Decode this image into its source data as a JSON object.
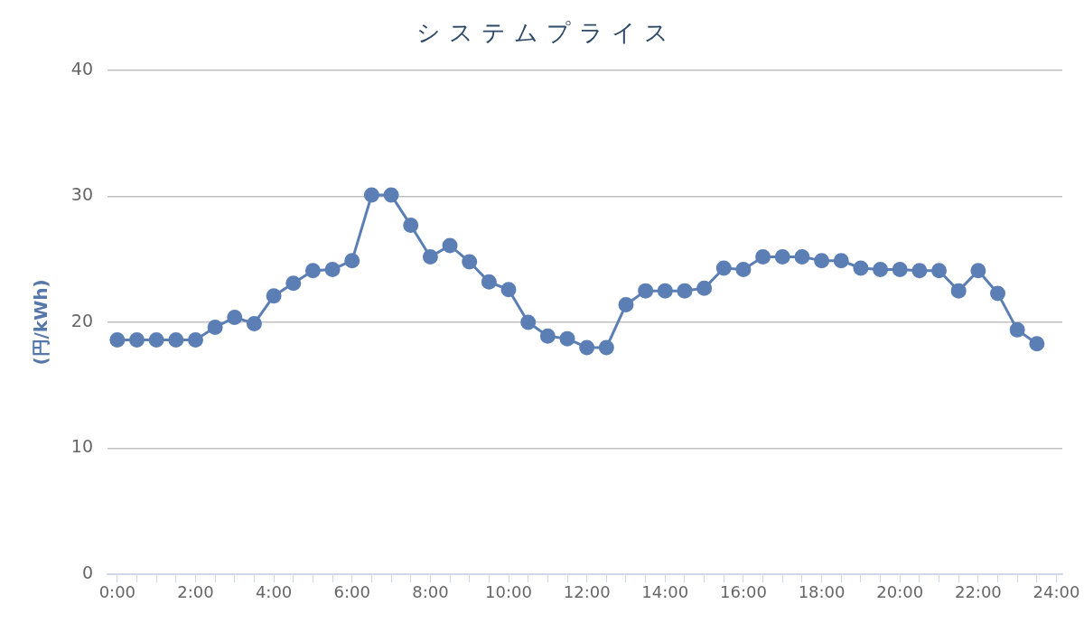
{
  "chart_data": {
    "type": "line",
    "title": "システムプライス",
    "ylabel": "(円/kWh)",
    "x": [
      0,
      0.5,
      1,
      1.5,
      2,
      2.5,
      3,
      3.5,
      4,
      4.5,
      5,
      5.5,
      6,
      6.5,
      7,
      7.5,
      8,
      8.5,
      9,
      9.5,
      10,
      10.5,
      11,
      11.5,
      12,
      12.5,
      13,
      13.5,
      14,
      14.5,
      15,
      15.5,
      16,
      16.5,
      17,
      17.5,
      18,
      18.5,
      19,
      19.5,
      20,
      20.5,
      21,
      21.5,
      22,
      22.5,
      23,
      23.5
    ],
    "series": [
      {
        "color": "#5b7fb5",
        "values": [
          18.6,
          18.6,
          18.6,
          18.6,
          18.6,
          19.6,
          20.4,
          19.9,
          22.1,
          23.1,
          24.1,
          24.2,
          24.9,
          30.1,
          30.1,
          27.7,
          25.2,
          26.1,
          24.8,
          23.2,
          22.6,
          20.0,
          18.9,
          18.7,
          18.0,
          18.0,
          21.4,
          22.5,
          22.5,
          22.5,
          22.7,
          24.3,
          24.2,
          25.2,
          25.2,
          25.2,
          24.9,
          24.9,
          24.3,
          24.2,
          24.2,
          24.1,
          24.1,
          22.5,
          24.1,
          22.3,
          19.4,
          18.3
        ]
      }
    ],
    "xlim": [
      -0.25,
      24.15
    ],
    "xticks": [
      {
        "value": 0,
        "label": "0:00"
      },
      {
        "value": 0.5,
        "label": null
      },
      {
        "value": 1,
        "label": null
      },
      {
        "value": 1.5,
        "label": null
      },
      {
        "value": 2,
        "label": "2:00"
      },
      {
        "value": 2.5,
        "label": null
      },
      {
        "value": 3,
        "label": null
      },
      {
        "value": 3.5,
        "label": null
      },
      {
        "value": 4,
        "label": "4:00"
      },
      {
        "value": 4.5,
        "label": null
      },
      {
        "value": 5,
        "label": null
      },
      {
        "value": 5.5,
        "label": null
      },
      {
        "value": 6,
        "label": "6:00"
      },
      {
        "value": 6.5,
        "label": null
      },
      {
        "value": 7,
        "label": null
      },
      {
        "value": 7.5,
        "label": null
      },
      {
        "value": 8,
        "label": "8:00"
      },
      {
        "value": 8.5,
        "label": null
      },
      {
        "value": 9,
        "label": null
      },
      {
        "value": 9.5,
        "label": null
      },
      {
        "value": 10,
        "label": "10:00"
      },
      {
        "value": 10.5,
        "label": null
      },
      {
        "value": 11,
        "label": null
      },
      {
        "value": 11.5,
        "label": null
      },
      {
        "value": 12,
        "label": "12:00"
      },
      {
        "value": 12.5,
        "label": null
      },
      {
        "value": 13,
        "label": null
      },
      {
        "value": 13.5,
        "label": null
      },
      {
        "value": 14,
        "label": "14:00"
      },
      {
        "value": 14.5,
        "label": null
      },
      {
        "value": 15,
        "label": null
      },
      {
        "value": 15.5,
        "label": null
      },
      {
        "value": 16,
        "label": "16:00"
      },
      {
        "value": 16.5,
        "label": null
      },
      {
        "value": 17,
        "label": null
      },
      {
        "value": 17.5,
        "label": null
      },
      {
        "value": 18,
        "label": "18:00"
      },
      {
        "value": 18.5,
        "label": null
      },
      {
        "value": 19,
        "label": null
      },
      {
        "value": 19.5,
        "label": null
      },
      {
        "value": 20,
        "label": "20:00"
      },
      {
        "value": 20.5,
        "label": null
      },
      {
        "value": 21,
        "label": null
      },
      {
        "value": 21.5,
        "label": null
      },
      {
        "value": 22,
        "label": "22:00"
      },
      {
        "value": 22.5,
        "label": null
      },
      {
        "value": 23,
        "label": null
      },
      {
        "value": 23.5,
        "label": null
      },
      {
        "value": 24,
        "label": "24:00"
      }
    ],
    "ylim": [
      0,
      40
    ],
    "yticks": [
      0,
      10,
      20,
      30,
      40
    ],
    "grid": "y",
    "marker": "circle",
    "line_style": "solid"
  }
}
